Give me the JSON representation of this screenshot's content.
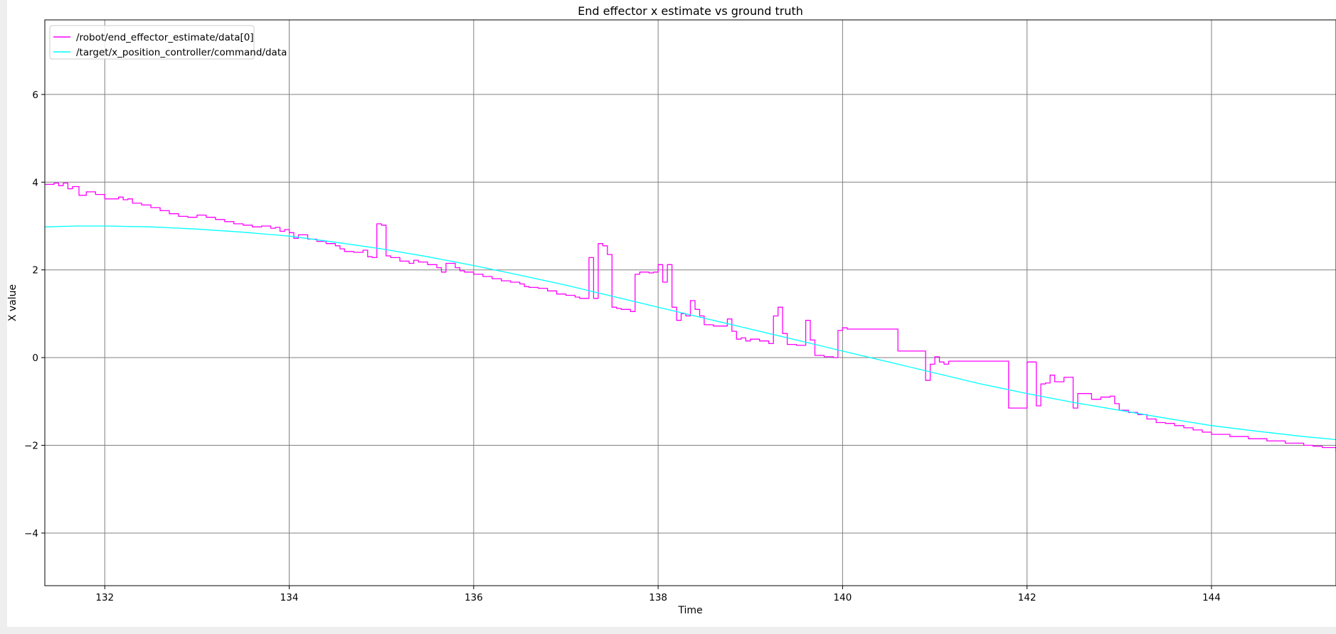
{
  "chart_data": {
    "type": "line",
    "title": "End effector x estimate vs ground truth",
    "xlabel": "Time",
    "ylabel": "X value",
    "xlim": [
      131.35,
      145.35
    ],
    "ylim": [
      -5.2,
      7.7
    ],
    "xticks": [
      132,
      134,
      136,
      138,
      140,
      142,
      144
    ],
    "yticks": [
      -4,
      -2,
      0,
      2,
      4,
      6
    ],
    "grid": true,
    "legend_position": "top-left",
    "series": [
      {
        "name": "/robot/end_effector_estimate/data[0]",
        "color": "#ff00ff",
        "step": true,
        "x": [
          131.35,
          131.45,
          131.5,
          131.55,
          131.6,
          131.65,
          131.72,
          131.8,
          131.9,
          132.0,
          132.15,
          132.2,
          132.25,
          132.3,
          132.4,
          132.5,
          132.6,
          132.7,
          132.8,
          132.9,
          133.0,
          133.1,
          133.2,
          133.3,
          133.4,
          133.5,
          133.6,
          133.7,
          133.8,
          133.85,
          133.9,
          133.95,
          134.0,
          134.05,
          134.1,
          134.2,
          134.3,
          134.4,
          134.5,
          134.55,
          134.6,
          134.7,
          134.8,
          134.85,
          134.9,
          134.95,
          135.0,
          135.05,
          135.1,
          135.2,
          135.3,
          135.35,
          135.4,
          135.5,
          135.6,
          135.65,
          135.7,
          135.8,
          135.85,
          135.9,
          136.0,
          136.1,
          136.2,
          136.3,
          136.4,
          136.5,
          136.55,
          136.6,
          136.7,
          136.8,
          136.9,
          137.0,
          137.1,
          137.15,
          137.2,
          137.25,
          137.3,
          137.35,
          137.4,
          137.45,
          137.5,
          137.55,
          137.6,
          137.7,
          137.75,
          137.8,
          137.9,
          137.95,
          138.0,
          138.05,
          138.1,
          138.15,
          138.2,
          138.25,
          138.3,
          138.35,
          138.4,
          138.45,
          138.5,
          138.6,
          138.7,
          138.75,
          138.8,
          138.85,
          138.9,
          138.95,
          139.0,
          139.1,
          139.2,
          139.25,
          139.3,
          139.35,
          139.4,
          139.5,
          139.6,
          139.65,
          139.7,
          139.8,
          139.9,
          139.95,
          140.0,
          140.05,
          140.1,
          140.3,
          140.6,
          140.9,
          140.95,
          141.0,
          141.05,
          141.1,
          141.15,
          141.2,
          141.3,
          141.5,
          141.8,
          142.0,
          142.1,
          142.15,
          142.2,
          142.25,
          142.3,
          142.4,
          142.5,
          142.55,
          142.6,
          142.65,
          142.7,
          142.8,
          142.9,
          142.95,
          143.0,
          143.1,
          143.2,
          143.3,
          143.4,
          143.5,
          143.6,
          143.7,
          143.8,
          143.9,
          144.0,
          144.2,
          144.4,
          144.6,
          144.8,
          145.0,
          145.1,
          145.2,
          145.35
        ],
        "y": [
          3.95,
          3.98,
          3.92,
          3.98,
          3.85,
          3.9,
          3.7,
          3.78,
          3.72,
          3.62,
          3.66,
          3.6,
          3.62,
          3.52,
          3.48,
          3.42,
          3.35,
          3.28,
          3.22,
          3.2,
          3.25,
          3.2,
          3.15,
          3.1,
          3.05,
          3.02,
          2.98,
          3.0,
          2.95,
          2.97,
          2.88,
          2.92,
          2.85,
          2.72,
          2.8,
          2.7,
          2.65,
          2.6,
          2.55,
          2.48,
          2.42,
          2.4,
          2.45,
          2.3,
          2.28,
          3.05,
          3.02,
          2.32,
          2.28,
          2.2,
          2.15,
          2.22,
          2.18,
          2.12,
          2.05,
          1.95,
          2.15,
          2.05,
          1.98,
          1.95,
          1.9,
          1.85,
          1.8,
          1.75,
          1.72,
          1.68,
          1.62,
          1.6,
          1.58,
          1.52,
          1.45,
          1.42,
          1.38,
          1.35,
          1.35,
          2.28,
          1.35,
          2.6,
          2.55,
          2.35,
          1.15,
          1.12,
          1.1,
          1.05,
          1.9,
          1.95,
          1.93,
          1.95,
          2.12,
          1.72,
          2.12,
          1.15,
          0.85,
          1.0,
          0.95,
          1.3,
          1.1,
          0.95,
          0.75,
          0.72,
          0.72,
          0.88,
          0.6,
          0.42,
          0.45,
          0.38,
          0.42,
          0.38,
          0.32,
          0.95,
          1.15,
          0.55,
          0.3,
          0.28,
          0.85,
          0.4,
          0.05,
          0.02,
          0.0,
          0.62,
          0.68,
          0.65,
          0.65,
          0.65,
          0.15,
          -0.52,
          -0.15,
          0.02,
          -0.1,
          -0.15,
          -0.08,
          -0.08,
          -0.08,
          -0.08,
          -1.15,
          -0.1,
          -1.1,
          -0.6,
          -0.58,
          -0.4,
          -0.55,
          -0.45,
          -1.15,
          -0.82,
          -0.82,
          -0.82,
          -0.95,
          -0.9,
          -0.88,
          -1.05,
          -1.2,
          -1.25,
          -1.3,
          -1.4,
          -1.48,
          -1.5,
          -1.55,
          -1.6,
          -1.65,
          -1.7,
          -1.75,
          -1.8,
          -1.85,
          -1.9,
          -1.95,
          -2.0,
          -2.02,
          -2.05,
          -2.15
        ]
      },
      {
        "name": "/target/x_position_controller/command/data",
        "color": "#00ffff",
        "step": false,
        "x": [
          131.35,
          131.7,
          132.0,
          132.5,
          133.0,
          133.5,
          134.0,
          134.5,
          135.0,
          135.5,
          136.0,
          136.5,
          137.0,
          137.5,
          138.0,
          138.5,
          139.0,
          139.5,
          140.0,
          140.5,
          141.0,
          141.5,
          142.0,
          142.5,
          143.0,
          143.5,
          144.0,
          144.5,
          145.0,
          145.35
        ],
        "y": [
          2.98,
          3.0,
          3.0,
          2.98,
          2.93,
          2.86,
          2.77,
          2.63,
          2.48,
          2.3,
          2.1,
          1.88,
          1.65,
          1.4,
          1.15,
          0.9,
          0.65,
          0.4,
          0.15,
          -0.1,
          -0.35,
          -0.6,
          -0.82,
          -1.02,
          -1.2,
          -1.38,
          -1.55,
          -1.68,
          -1.8,
          -1.87
        ]
      }
    ]
  }
}
